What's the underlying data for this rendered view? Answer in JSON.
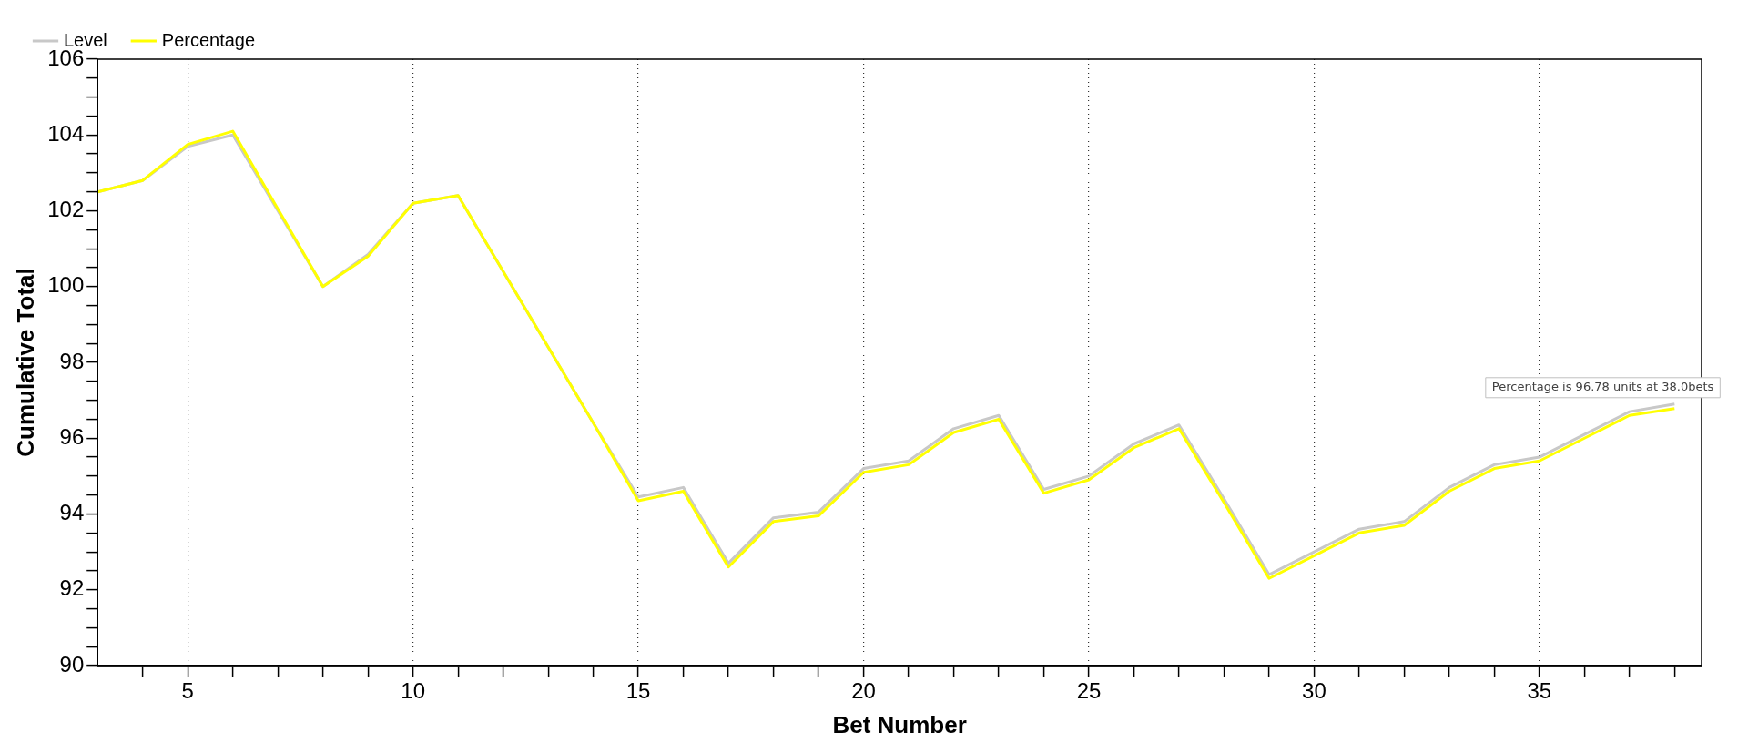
{
  "chart_data": {
    "type": "line",
    "xlabel": "Bet Number",
    "ylabel": "Cumulative Total",
    "x": [
      3,
      4,
      5,
      6,
      7,
      8,
      9,
      10,
      11,
      12,
      13,
      14,
      15,
      16,
      17,
      18,
      19,
      20,
      21,
      22,
      23,
      24,
      25,
      26,
      27,
      28,
      29,
      30,
      31,
      32,
      33,
      34,
      35,
      36,
      37,
      38
    ],
    "series": [
      {
        "name": "Level",
        "color": "#c8c8c8",
        "values": [
          102.5,
          102.8,
          103.7,
          104.0,
          102.0,
          100.0,
          100.85,
          102.2,
          102.4,
          100.4,
          98.4,
          96.4,
          94.45,
          94.7,
          92.7,
          93.9,
          94.05,
          95.2,
          95.4,
          96.25,
          96.6,
          94.65,
          95.0,
          95.85,
          96.35,
          94.4,
          92.4,
          93.0,
          93.6,
          93.8,
          94.7,
          95.3,
          95.5,
          96.1,
          96.7,
          96.9
        ]
      },
      {
        "name": "Percentage",
        "color": "#ffff00",
        "values": [
          102.5,
          102.8,
          103.75,
          104.1,
          102.05,
          100.0,
          100.8,
          102.2,
          102.4,
          100.4,
          98.4,
          96.4,
          94.35,
          94.6,
          92.6,
          93.8,
          93.95,
          95.1,
          95.3,
          96.15,
          96.5,
          94.55,
          94.9,
          95.75,
          96.25,
          94.3,
          92.3,
          92.9,
          93.5,
          93.7,
          94.6,
          95.2,
          95.4,
          96.0,
          96.6,
          96.78
        ]
      }
    ],
    "xlim": [
      3,
      38.6
    ],
    "xticks": [
      {
        "value": 4,
        "label": null
      },
      5,
      {
        "value": 6,
        "label": null
      },
      {
        "value": 7,
        "label": null
      },
      {
        "value": 8,
        "label": null
      },
      {
        "value": 9,
        "label": null
      },
      10,
      {
        "value": 11,
        "label": null
      },
      {
        "value": 12,
        "label": null
      },
      {
        "value": 13,
        "label": null
      },
      {
        "value": 14,
        "label": null
      },
      15,
      {
        "value": 16,
        "label": null
      },
      {
        "value": 17,
        "label": null
      },
      {
        "value": 18,
        "label": null
      },
      {
        "value": 19,
        "label": null
      },
      20,
      {
        "value": 21,
        "label": null
      },
      {
        "value": 22,
        "label": null
      },
      {
        "value": 23,
        "label": null
      },
      {
        "value": 24,
        "label": null
      },
      25,
      {
        "value": 26,
        "label": null
      },
      {
        "value": 27,
        "label": null
      },
      {
        "value": 28,
        "label": null
      },
      {
        "value": 29,
        "label": null
      },
      30,
      {
        "value": 31,
        "label": null
      },
      {
        "value": 32,
        "label": null
      },
      {
        "value": 33,
        "label": null
      },
      {
        "value": 34,
        "label": null
      },
      35,
      {
        "value": 36,
        "label": null
      },
      {
        "value": 37,
        "label": null
      },
      {
        "value": 38,
        "label": null
      }
    ],
    "ylim": [
      90,
      106
    ],
    "yticks": [
      90,
      {
        "value": 90.5,
        "label": null
      },
      {
        "value": 91,
        "label": null
      },
      {
        "value": 91.5,
        "label": null
      },
      92,
      {
        "value": 92.5,
        "label": null
      },
      {
        "value": 93,
        "label": null
      },
      {
        "value": 93.5,
        "label": null
      },
      94,
      {
        "value": 94.5,
        "label": null
      },
      {
        "value": 95,
        "label": null
      },
      {
        "value": 95.5,
        "label": null
      },
      96,
      {
        "value": 96.5,
        "label": null
      },
      {
        "value": 97,
        "label": null
      },
      {
        "value": 97.5,
        "label": null
      },
      98,
      {
        "value": 98.5,
        "label": null
      },
      {
        "value": 99,
        "label": null
      },
      {
        "value": 99.5,
        "label": null
      },
      100,
      {
        "value": 100.5,
        "label": null
      },
      {
        "value": 101,
        "label": null
      },
      {
        "value": 101.5,
        "label": null
      },
      102,
      {
        "value": 102.5,
        "label": null
      },
      {
        "value": 103,
        "label": null
      },
      {
        "value": 103.5,
        "label": null
      },
      104,
      {
        "value": 104.5,
        "label": null
      },
      {
        "value": 105,
        "label": null
      },
      {
        "value": 105.5,
        "label": null
      },
      106
    ],
    "grid": "x",
    "legend": "top left",
    "marker": "none",
    "line_style": "solid",
    "annotations": [
      {
        "text": "Percentage is 96.78 units at 38.0bets",
        "x": 38,
        "y": 96.78
      }
    ]
  }
}
